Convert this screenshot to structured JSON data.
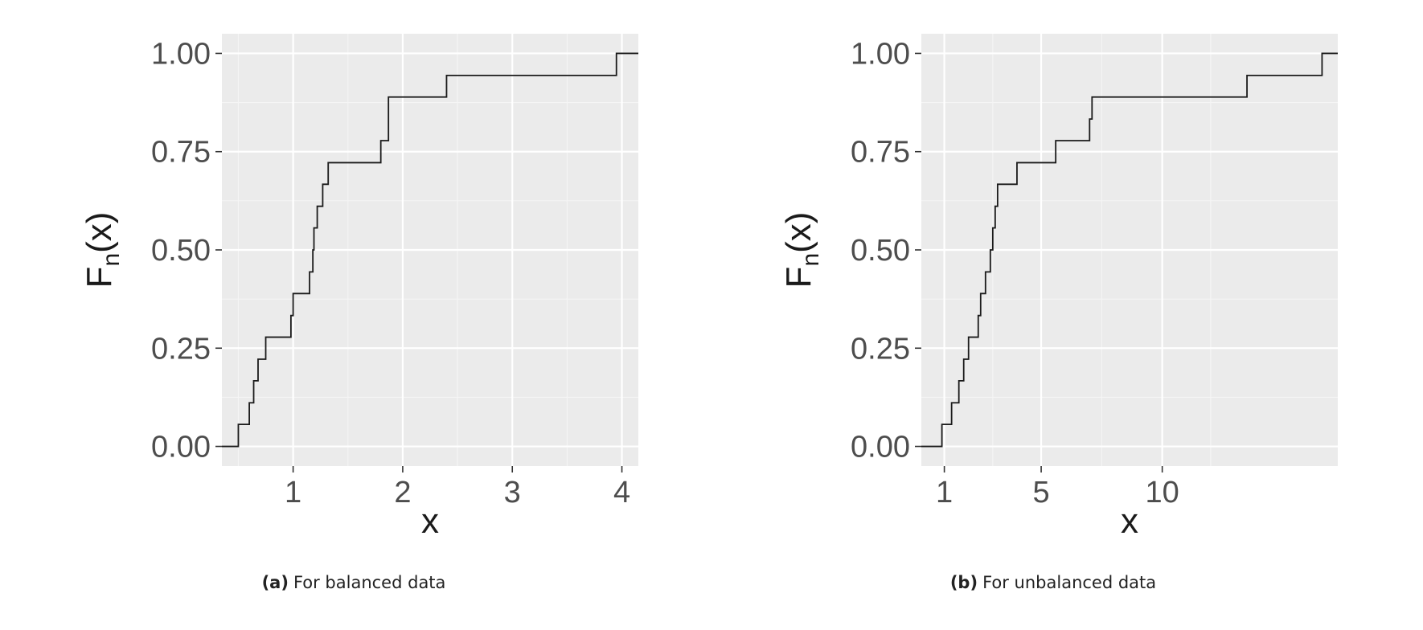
{
  "chart_data": [
    {
      "type": "line",
      "step": true,
      "caption_tag": "(a)",
      "caption_text": "For balanced data",
      "xlabel": "x",
      "ylabel_base": "F",
      "ylabel_sub": "n",
      "ylabel_arg": "(x)",
      "xlim": [
        0.35,
        4.15
      ],
      "ylim": [
        -0.05,
        1.05
      ],
      "xticks": [
        1,
        2,
        3,
        4
      ],
      "xtick_labels": [
        "1",
        "2",
        "3",
        "4"
      ],
      "yticks": [
        0,
        0.25,
        0.5,
        0.75,
        1
      ],
      "ytick_labels": [
        "0.00",
        "0.25",
        "0.50",
        "0.75",
        "1.00"
      ],
      "x": [
        0.5,
        0.6,
        0.64,
        0.68,
        0.75,
        0.98,
        1.0,
        1.15,
        1.18,
        1.19,
        1.22,
        1.27,
        1.32,
        1.8,
        1.87,
        2.4,
        3.95
      ],
      "y": [
        0.056,
        0.111,
        0.167,
        0.222,
        0.278,
        0.333,
        0.389,
        0.444,
        0.5,
        0.556,
        0.611,
        0.667,
        0.722,
        0.778,
        0.889,
        0.944,
        1.0
      ],
      "x_start": 0.35,
      "x_end": 4.15,
      "grid": true
    },
    {
      "type": "line",
      "step": true,
      "caption_tag": "(b)",
      "caption_text": "For unbalanced data",
      "xlabel": "x",
      "ylabel_base": "F",
      "ylabel_sub": "n",
      "ylabel_arg": "(x)",
      "xlim": [
        0.05,
        17.25
      ],
      "ylim": [
        -0.05,
        1.05
      ],
      "xticks": [
        1,
        5,
        10
      ],
      "xtick_labels": [
        "1",
        "5",
        "10"
      ],
      "yticks": [
        0,
        0.25,
        0.5,
        0.75,
        1
      ],
      "ytick_labels": [
        "0.00",
        "0.25",
        "0.50",
        "0.75",
        "1.00"
      ],
      "x": [
        0.9,
        1.3,
        1.6,
        1.8,
        2.0,
        2.4,
        2.5,
        2.7,
        2.9,
        3.0,
        3.1,
        3.2,
        4.0,
        5.6,
        7.0,
        7.1,
        13.5,
        16.6
      ],
      "y": [
        0.056,
        0.111,
        0.167,
        0.222,
        0.278,
        0.333,
        0.389,
        0.444,
        0.5,
        0.556,
        0.611,
        0.667,
        0.722,
        0.778,
        0.833,
        0.889,
        0.944,
        1.0
      ],
      "x_start": 0.05,
      "x_end": 17.25,
      "grid": true
    }
  ]
}
